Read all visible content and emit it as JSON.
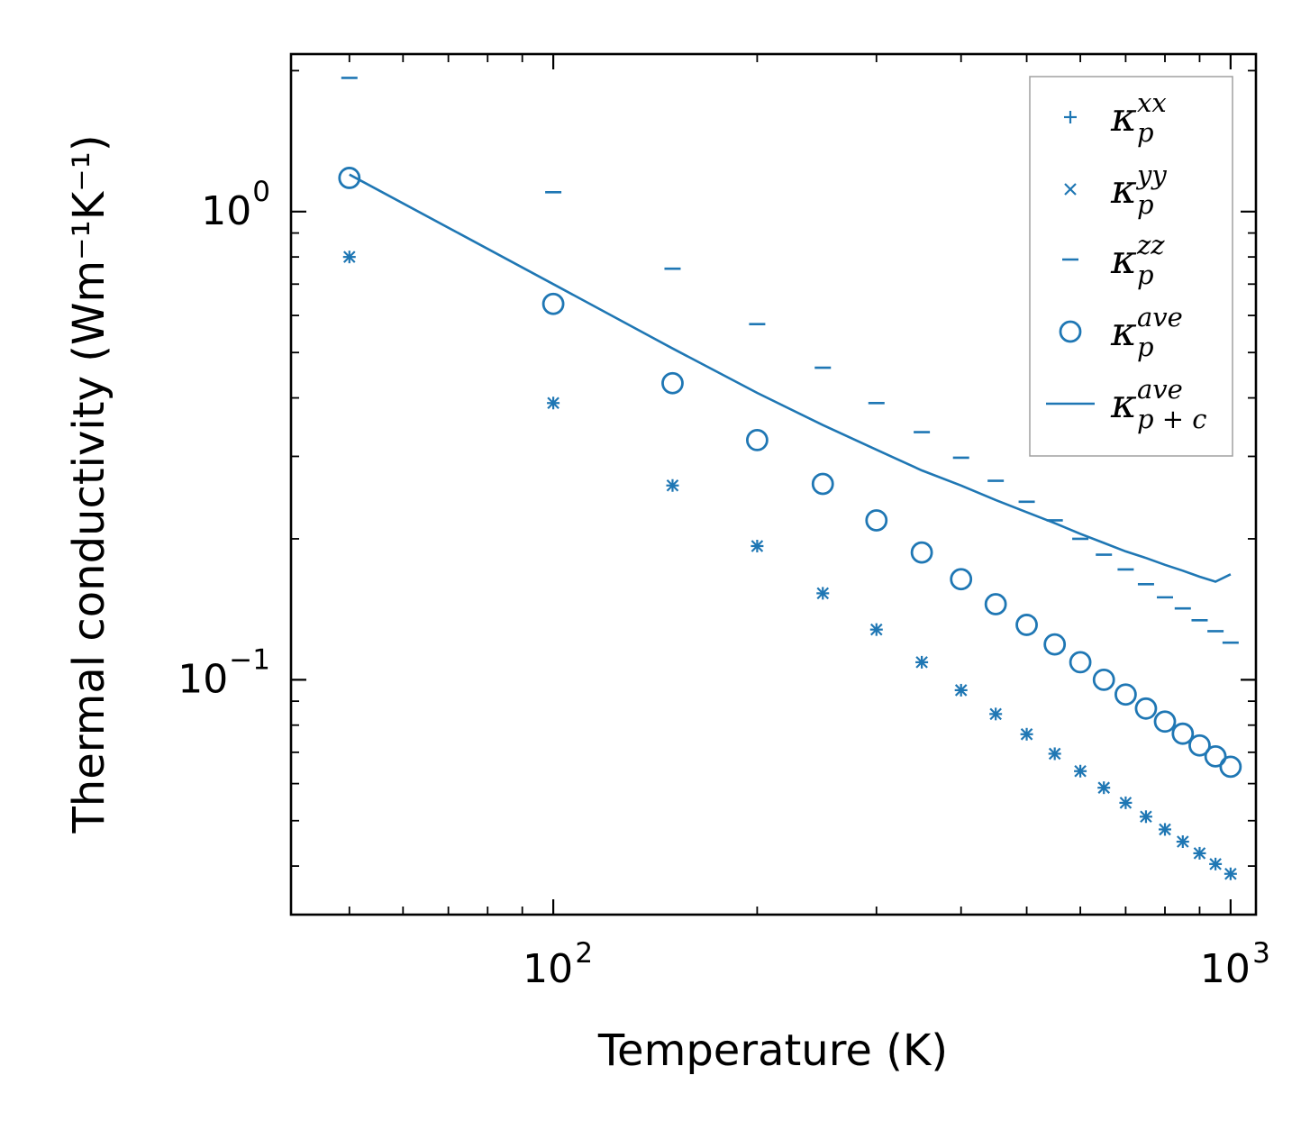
{
  "chart_data": {
    "type": "scatter",
    "xscale": "log",
    "yscale": "log",
    "xlabel": "Temperature (K)",
    "ylabel": "Thermal conductivity (Wm⁻¹K⁻¹)",
    "xlim": [
      41,
      1090
    ],
    "ylim": [
      0.0315,
      2.17
    ],
    "xticks": [
      {
        "value": 100,
        "base": "10",
        "exp": "2"
      },
      {
        "value": 1000,
        "base": "10",
        "exp": "3"
      }
    ],
    "yticks": [
      {
        "value": 0.1,
        "base": "10",
        "exp": "−1"
      },
      {
        "value": 1,
        "base": "10",
        "exp": "0"
      }
    ],
    "legend_position": "top-right",
    "color": "#1f77b4",
    "x": [
      50,
      100,
      150,
      200,
      250,
      300,
      350,
      400,
      450,
      500,
      550,
      600,
      650,
      700,
      750,
      800,
      850,
      900,
      950,
      1000
    ],
    "series": [
      {
        "name": "kappa_p_xx",
        "label_base": "κ",
        "label_sub": "p",
        "label_sup": "xx",
        "marker": "plus",
        "values": [
          0.8,
          0.39,
          0.26,
          0.193,
          0.153,
          0.128,
          0.109,
          0.095,
          0.0845,
          0.0765,
          0.0695,
          0.0638,
          0.0588,
          0.0546,
          0.051,
          0.0479,
          0.0451,
          0.0426,
          0.0404,
          0.0385
        ]
      },
      {
        "name": "kappa_p_yy",
        "label_base": "κ",
        "label_sub": "p",
        "label_sup": "yy",
        "marker": "x",
        "values": [
          0.8,
          0.39,
          0.26,
          0.193,
          0.153,
          0.128,
          0.109,
          0.095,
          0.0845,
          0.0765,
          0.0695,
          0.0638,
          0.0588,
          0.0546,
          0.051,
          0.0479,
          0.0451,
          0.0426,
          0.0404,
          0.0385
        ]
      },
      {
        "name": "kappa_p_zz",
        "label_base": "κ",
        "label_sub": "p",
        "label_sup": "zz",
        "marker": "hline",
        "values": [
          1.93,
          1.1,
          0.755,
          0.575,
          0.464,
          0.39,
          0.338,
          0.298,
          0.266,
          0.24,
          0.219,
          0.2,
          0.185,
          0.172,
          0.16,
          0.15,
          0.142,
          0.134,
          0.127,
          0.12
        ]
      },
      {
        "name": "kappa_p_ave",
        "label_base": "κ",
        "label_sub": "p",
        "label_sup": "ave",
        "marker": "circle",
        "values": [
          1.18,
          0.635,
          0.43,
          0.325,
          0.262,
          0.219,
          0.187,
          0.164,
          0.145,
          0.131,
          0.119,
          0.109,
          0.1,
          0.093,
          0.0868,
          0.0814,
          0.0767,
          0.0724,
          0.0686,
          0.0652
        ]
      },
      {
        "name": "kappa_pc_ave",
        "label_base": "κ",
        "label_sub": "p + c",
        "label_sup": "ave",
        "marker": "line",
        "values": [
          1.2,
          0.7,
          0.51,
          0.41,
          0.35,
          0.31,
          0.28,
          0.26,
          0.242,
          0.228,
          0.216,
          0.205,
          0.196,
          0.188,
          0.182,
          0.176,
          0.171,
          0.166,
          0.162,
          0.168
        ]
      }
    ]
  }
}
